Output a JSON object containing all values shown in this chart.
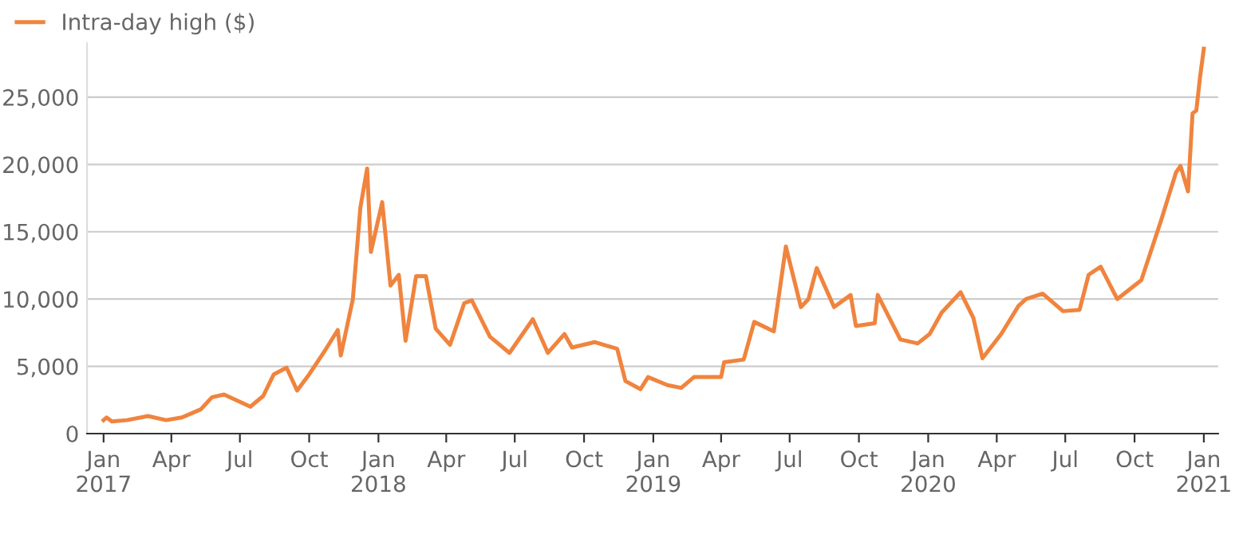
{
  "chart_data": {
    "type": "line",
    "legend": "top left",
    "grid": "y",
    "marker": "none",
    "line_style": "solid",
    "xlim": [
      "2016-12-10",
      "2021-01-20"
    ],
    "ylim": [
      0,
      29000
    ],
    "xticks": [
      {
        "value": "2017-01-01",
        "label": "Jan\n2017"
      },
      {
        "value": "2017-04-01",
        "label": "Apr"
      },
      {
        "value": "2017-07-01",
        "label": "Jul"
      },
      {
        "value": "2017-10-01",
        "label": "Oct"
      },
      {
        "value": "2018-01-01",
        "label": "Jan\n2018"
      },
      {
        "value": "2018-04-01",
        "label": "Apr"
      },
      {
        "value": "2018-07-01",
        "label": "Jul"
      },
      {
        "value": "2018-10-01",
        "label": "Oct"
      },
      {
        "value": "2019-01-01",
        "label": "Jan\n2019"
      },
      {
        "value": "2019-04-01",
        "label": "Apr"
      },
      {
        "value": "2019-07-01",
        "label": "Jul"
      },
      {
        "value": "2019-10-01",
        "label": "Oct"
      },
      {
        "value": "2020-01-01",
        "label": "Jan\n2020"
      },
      {
        "value": "2020-04-01",
        "label": "Apr"
      },
      {
        "value": "2020-07-01",
        "label": "Jul"
      },
      {
        "value": "2020-10-01",
        "label": "Oct"
      },
      {
        "value": "2021-01-01",
        "label": "Jan\n2021"
      }
    ],
    "yticks": [
      0,
      {
        "value": 5000,
        "label": "5,000"
      },
      {
        "value": 10000,
        "label": "10,000"
      },
      {
        "value": 15000,
        "label": "15,000"
      },
      {
        "value": 20000,
        "label": "20,000"
      },
      {
        "value": 25000,
        "label": "25,000"
      }
    ],
    "series": [
      {
        "name": "Intra-day high ($)",
        "color": "#f0843e",
        "x": [
          "2017-01-01",
          "2017-01-05",
          "2017-01-12",
          "2017-02-01",
          "2017-03-01",
          "2017-03-25",
          "2017-04-15",
          "2017-05-10",
          "2017-05-25",
          "2017-06-10",
          "2017-07-15",
          "2017-08-01",
          "2017-08-15",
          "2017-09-01",
          "2017-09-15",
          "2017-10-01",
          "2017-10-20",
          "2017-11-08",
          "2017-11-12",
          "2017-11-28",
          "2017-12-08",
          "2017-12-17",
          "2017-12-22",
          "2018-01-06",
          "2018-01-17",
          "2018-01-28",
          "2018-02-06",
          "2018-02-20",
          "2018-03-05",
          "2018-03-18",
          "2018-04-06",
          "2018-04-25",
          "2018-05-05",
          "2018-05-29",
          "2018-06-24",
          "2018-07-25",
          "2018-08-14",
          "2018-09-05",
          "2018-09-15",
          "2018-10-15",
          "2018-11-14",
          "2018-11-25",
          "2018-12-15",
          "2018-12-25",
          "2019-01-20",
          "2019-02-07",
          "2019-02-24",
          "2019-04-01",
          "2019-04-05",
          "2019-05-01",
          "2019-05-15",
          "2019-06-10",
          "2019-06-26",
          "2019-07-16",
          "2019-07-26",
          "2019-08-06",
          "2019-08-29",
          "2019-09-20",
          "2019-09-27",
          "2019-10-22",
          "2019-10-26",
          "2019-11-25",
          "2019-12-18",
          "2020-01-03",
          "2020-01-19",
          "2020-02-13",
          "2020-03-01",
          "2020-03-13",
          "2020-04-07",
          "2020-04-30",
          "2020-05-10",
          "2020-06-01",
          "2020-06-28",
          "2020-07-20",
          "2020-08-01",
          "2020-08-17",
          "2020-09-08",
          "2020-10-10",
          "2020-11-05",
          "2020-11-25",
          "2020-12-01",
          "2020-12-11",
          "2020-12-17",
          "2020-12-22",
          "2020-12-27",
          "2021-01-01"
        ],
        "values": [
          1000,
          1200,
          900,
          1000,
          1300,
          1000,
          1200,
          1800,
          2700,
          2900,
          2000,
          2800,
          4400,
          4900,
          3200,
          4400,
          6000,
          7700,
          5800,
          10000,
          16800,
          19700,
          13500,
          17200,
          11000,
          11800,
          6900,
          11700,
          11700,
          7800,
          6600,
          9700,
          9900,
          7200,
          6000,
          8500,
          6000,
          7400,
          6400,
          6800,
          6300,
          3900,
          3300,
          4200,
          3600,
          3400,
          4200,
          4200,
          5300,
          5500,
          8300,
          7600,
          13900,
          9400,
          10000,
          12300,
          9400,
          10300,
          8000,
          8200,
          10300,
          7000,
          6700,
          7400,
          9000,
          10500,
          8600,
          5600,
          7400,
          9500,
          10000,
          10400,
          9100,
          9200,
          11800,
          12400,
          10000,
          11400,
          15800,
          19400,
          19900,
          18000,
          23800,
          24000,
          26500,
          28600
        ]
      }
    ]
  }
}
